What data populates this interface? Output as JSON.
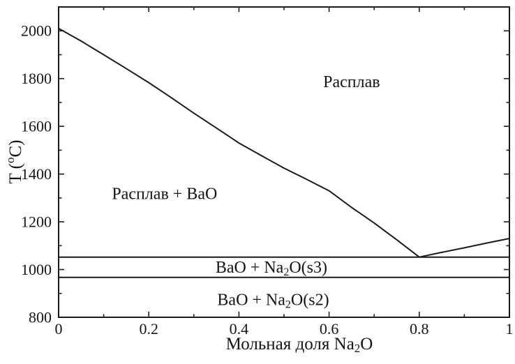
{
  "chart_data": {
    "type": "line",
    "title": "",
    "xlabel_parts": [
      {
        "t": "Мольная доля Na"
      },
      {
        "t": "2",
        "sub": true
      },
      {
        "t": "O"
      }
    ],
    "ylabel_parts": [
      {
        "t": "T ("
      },
      {
        "t": "o",
        "sup": true
      },
      {
        "t": "C)"
      }
    ],
    "xlim": [
      0,
      1
    ],
    "ylim": [
      800,
      2100
    ],
    "x_axis": {
      "major_ticks": [
        0,
        0.2,
        0.4,
        0.6,
        0.8,
        1
      ],
      "major_labels": [
        "0",
        "0.2",
        "0.4",
        "0.6",
        "0.8",
        "1"
      ],
      "minor_step": 0.1
    },
    "y_axis": {
      "major_ticks": [
        800,
        1000,
        1200,
        1400,
        1600,
        1800,
        2000
      ],
      "major_labels": [
        "800",
        "1000",
        "1200",
        "1400",
        "1600",
        "1800",
        "2000"
      ],
      "minor_step": 100
    },
    "grid": false,
    "legend": "none",
    "series": [
      {
        "name": "liquidus-curve",
        "points": [
          [
            0,
            2010
          ],
          [
            0.05,
            1957
          ],
          [
            0.1,
            1900
          ],
          [
            0.15,
            1842
          ],
          [
            0.2,
            1783
          ],
          [
            0.25,
            1720
          ],
          [
            0.3,
            1655
          ],
          [
            0.35,
            1593
          ],
          [
            0.4,
            1530
          ],
          [
            0.45,
            1477
          ],
          [
            0.5,
            1425
          ],
          [
            0.55,
            1378
          ],
          [
            0.6,
            1330
          ],
          [
            0.65,
            1260
          ],
          [
            0.7,
            1195
          ],
          [
            0.75,
            1125
          ],
          [
            0.8,
            1052
          ],
          [
            0.85,
            1072
          ],
          [
            0.9,
            1091
          ],
          [
            0.95,
            1111
          ],
          [
            1,
            1130
          ]
        ]
      },
      {
        "name": "eutectic-isotherm-line",
        "points": [
          [
            0,
            1052
          ],
          [
            1,
            1052
          ]
        ]
      },
      {
        "name": "na2o-transition-isotherm-line",
        "points": [
          [
            0,
            967
          ],
          [
            1,
            967
          ]
        ]
      }
    ],
    "region_labels": [
      {
        "id": "melt",
        "x": 0.65,
        "T": 1785,
        "parts": [
          {
            "t": "Расплав"
          }
        ]
      },
      {
        "id": "melt-plus-bao",
        "x": 0.235,
        "T": 1315,
        "parts": [
          {
            "t": "Расплав + BaO"
          }
        ]
      },
      {
        "id": "bao-plus-na2o-s3",
        "x": 0.472,
        "T": 1007,
        "parts": [
          {
            "t": "BaO + Na"
          },
          {
            "t": "2",
            "sub": true
          },
          {
            "t": "O(s3)"
          }
        ]
      },
      {
        "id": "bao-plus-na2o-s2",
        "x": 0.476,
        "T": 872,
        "parts": [
          {
            "t": "BaO + Na"
          },
          {
            "t": "2",
            "sub": true
          },
          {
            "t": "O(s2)"
          }
        ]
      }
    ]
  },
  "colors": {
    "line": "#1a1a1a",
    "text": "#151515",
    "background": "#ffffff"
  }
}
